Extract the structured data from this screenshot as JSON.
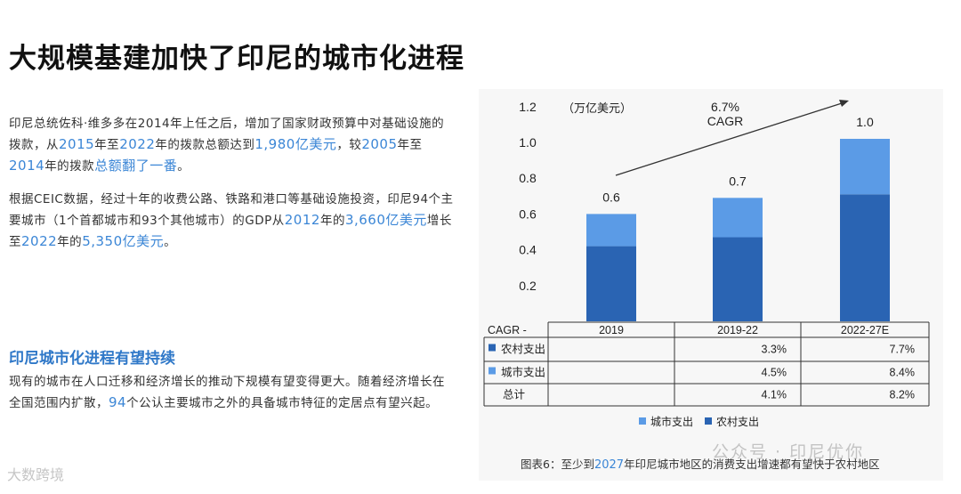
{
  "title": "大规模基建加快了印尼的城市化进程",
  "para1": [
    {
      "t": "印尼总统佐科·维多多在2014年上任之后，增加了国家财政预算中对基础设施的拨款，",
      "hl": false
    },
    {
      "t": "从",
      "hl": false
    },
    {
      "t": "2015",
      "hl": true
    },
    {
      "t": "年至",
      "hl": false
    },
    {
      "t": "2022",
      "hl": true
    },
    {
      "t": "年的拨款总额达到",
      "hl": false
    },
    {
      "t": "1,980亿美元",
      "hl": true
    },
    {
      "t": "，较",
      "hl": false
    },
    {
      "t": "2005",
      "hl": true
    },
    {
      "t": "年至",
      "hl": false
    },
    {
      "t": "2014",
      "hl": true
    },
    {
      "t": "年的拨款",
      "hl": false
    },
    {
      "t": "总额翻了一番",
      "hl": true
    },
    {
      "t": "。",
      "hl": false
    }
  ],
  "para2": [
    {
      "t": "根据CEIC数据，经过十年的收费公路、铁路和港口等基础设施投资，印尼94个主要城市（1个首都城市和93个其他城市）的GDP从",
      "hl": false
    },
    {
      "t": "2012",
      "hl": true
    },
    {
      "t": "年的",
      "hl": false
    },
    {
      "t": "3,660亿美元",
      "hl": true
    },
    {
      "t": "增长至",
      "hl": false
    },
    {
      "t": "2022",
      "hl": true
    },
    {
      "t": "年的",
      "hl": false
    },
    {
      "t": "5,350亿美元",
      "hl": true
    },
    {
      "t": "。",
      "hl": false
    }
  ],
  "subtitle": "印尼城市化进程有望持续",
  "para3": [
    {
      "t": "现有的城市在人口迁移和经济增长的推动下规模有望变得更大。随着经济增长在全国范围内扩散，",
      "hl": false
    },
    {
      "t": "94",
      "hl": true
    },
    {
      "t": "个公认主要城市之外的具备城市特征的定居点有望兴起。",
      "hl": false
    }
  ],
  "caption": [
    {
      "t": "图表6：至少到",
      "hl": false
    },
    {
      "t": "2027",
      "hl": true
    },
    {
      "t": "年印尼城市地区的消费支出增速都有望快于农村地区",
      "hl": false
    }
  ],
  "watermark_left": "大数跨境",
  "watermark_right": "公众号 · 印尼优你",
  "colors": {
    "rural": "#2a64b3",
    "urban": "#5b9be6",
    "highlight": "#3b86d6"
  },
  "chart_data": {
    "type": "bar",
    "stacked": true,
    "unit_label": "（万亿美元）",
    "categories": [
      "2019",
      "2019-22",
      "2022-27E"
    ],
    "series": [
      {
        "name": "农村支出",
        "color": "#2a64b3",
        "values": [
          0.42,
          0.47,
          0.71
        ]
      },
      {
        "name": "城市支出",
        "color": "#5b9be6",
        "values": [
          0.18,
          0.22,
          0.31
        ]
      }
    ],
    "totals": [
      "0.6",
      "0.7",
      "1.0"
    ],
    "yticks": [
      "1.2",
      "1.0",
      "0.8",
      "0.6",
      "0.4",
      "0.2"
    ],
    "ylim": [
      0,
      1.2
    ],
    "cagr_annotation": {
      "value": "6.7%",
      "label": "CAGR"
    },
    "table": {
      "header_label": "CAGR -",
      "rows": [
        {
          "label": "农村支出",
          "color": "#2a64b3",
          "values": [
            "",
            "3.3%",
            "7.7%"
          ]
        },
        {
          "label": "城市支出",
          "color": "#5b9be6",
          "values": [
            "",
            "4.5%",
            "8.4%"
          ]
        },
        {
          "label": "总计",
          "color": "",
          "values": [
            "",
            "4.1%",
            "8.2%"
          ]
        }
      ]
    },
    "legend": [
      {
        "name": "城市支出",
        "color": "#5b9be6"
      },
      {
        "name": "农村支出",
        "color": "#2a64b3"
      }
    ],
    "legend_position": "bottom"
  }
}
